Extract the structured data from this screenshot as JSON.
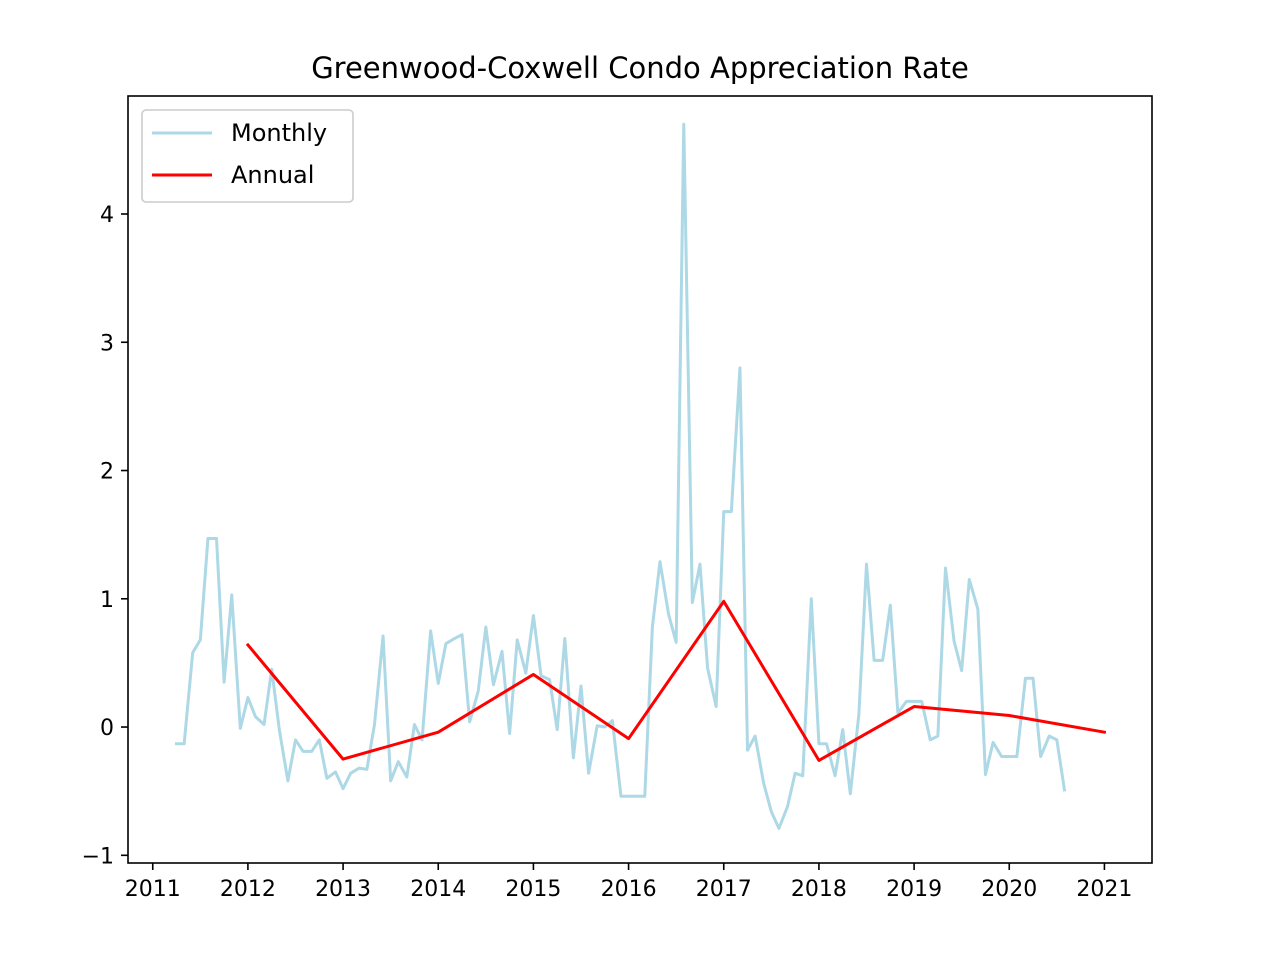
{
  "chart_data": {
    "type": "line",
    "title": "Greenwood-Coxwell Condo Appreciation Rate",
    "xlabel": "",
    "ylabel": "",
    "xlim": [
      2010.74,
      2021.5
    ],
    "ylim": [
      -1.06,
      4.92
    ],
    "x_ticks": [
      2011,
      2012,
      2013,
      2014,
      2015,
      2016,
      2017,
      2018,
      2019,
      2020,
      2021
    ],
    "y_ticks": [
      -1,
      0,
      1,
      2,
      3,
      4
    ],
    "y_tick_labels": [
      "−1",
      "0",
      "1",
      "2",
      "3",
      "4"
    ],
    "grid": false,
    "legend_position": "top-left",
    "series": [
      {
        "name": "Monthly",
        "color": "#add8e6",
        "x": [
          2011.25,
          2011.33,
          2011.42,
          2011.5,
          2011.58,
          2011.67,
          2011.75,
          2011.83,
          2011.92,
          2012.0,
          2012.08,
          2012.17,
          2012.25,
          2012.33,
          2012.42,
          2012.5,
          2012.58,
          2012.67,
          2012.75,
          2012.83,
          2012.92,
          2013.0,
          2013.08,
          2013.17,
          2013.25,
          2013.33,
          2013.42,
          2013.5,
          2013.58,
          2013.67,
          2013.75,
          2013.83,
          2013.92,
          2014.0,
          2014.08,
          2014.17,
          2014.25,
          2014.33,
          2014.42,
          2014.5,
          2014.58,
          2014.67,
          2014.75,
          2014.83,
          2014.92,
          2015.0,
          2015.08,
          2015.17,
          2015.25,
          2015.33,
          2015.42,
          2015.5,
          2015.58,
          2015.67,
          2015.75,
          2015.83,
          2015.92,
          2016.0,
          2016.08,
          2016.17,
          2016.25,
          2016.33,
          2016.42,
          2016.5,
          2016.58,
          2016.67,
          2016.75,
          2016.83,
          2016.92,
          2017.0,
          2017.08,
          2017.17,
          2017.25,
          2017.33,
          2017.42,
          2017.5,
          2017.58,
          2017.67,
          2017.75,
          2017.83,
          2017.92,
          2018.0,
          2018.08,
          2018.17,
          2018.25,
          2018.33,
          2018.42,
          2018.5,
          2018.58,
          2018.67,
          2018.75,
          2018.83,
          2018.92,
          2019.0,
          2019.08,
          2019.17,
          2019.25,
          2019.33,
          2019.42,
          2019.5,
          2019.58,
          2019.67,
          2019.75,
          2019.83,
          2019.92,
          2020.0,
          2020.08,
          2020.17,
          2020.25,
          2020.33,
          2020.42,
          2020.5,
          2020.58
        ],
        "values": [
          -0.13,
          -0.13,
          0.58,
          0.68,
          1.47,
          1.47,
          0.35,
          1.03,
          -0.01,
          0.23,
          0.08,
          0.02,
          0.45,
          -0.02,
          -0.42,
          -0.1,
          -0.19,
          -0.19,
          -0.1,
          -0.4,
          -0.35,
          -0.48,
          -0.36,
          -0.32,
          -0.33,
          0.02,
          0.71,
          -0.42,
          -0.27,
          -0.39,
          0.02,
          -0.1,
          0.75,
          0.34,
          0.65,
          0.69,
          0.72,
          0.04,
          0.28,
          0.78,
          0.33,
          0.59,
          -0.05,
          0.68,
          0.42,
          0.87,
          0.4,
          0.37,
          -0.02,
          0.69,
          -0.24,
          0.32,
          -0.36,
          0.01,
          0.0,
          0.05,
          -0.54,
          -0.54,
          -0.54,
          -0.54,
          0.78,
          1.29,
          0.88,
          0.66,
          4.7,
          0.97,
          1.27,
          0.46,
          0.16,
          1.68,
          1.68,
          2.8,
          -0.18,
          -0.07,
          -0.44,
          -0.66,
          -0.79,
          -0.62,
          -0.36,
          -0.38,
          1.0,
          -0.13,
          -0.13,
          -0.38,
          -0.02,
          -0.52,
          0.1,
          1.27,
          0.52,
          0.52,
          0.95,
          0.11,
          0.2,
          0.2,
          0.2,
          -0.1,
          -0.07,
          1.24,
          0.67,
          0.44,
          1.15,
          0.92,
          -0.37,
          -0.12,
          -0.23,
          -0.23,
          -0.23,
          0.38,
          0.38,
          -0.23,
          -0.07,
          -0.1,
          -0.49
        ]
      },
      {
        "name": "Annual",
        "color": "#ff0000",
        "x": [
          2012,
          2013,
          2014,
          2015,
          2016,
          2017,
          2018,
          2019,
          2020,
          2021
        ],
        "values": [
          0.64,
          -0.25,
          -0.04,
          0.41,
          -0.09,
          0.98,
          -0.26,
          0.16,
          0.09,
          -0.04
        ]
      }
    ]
  }
}
